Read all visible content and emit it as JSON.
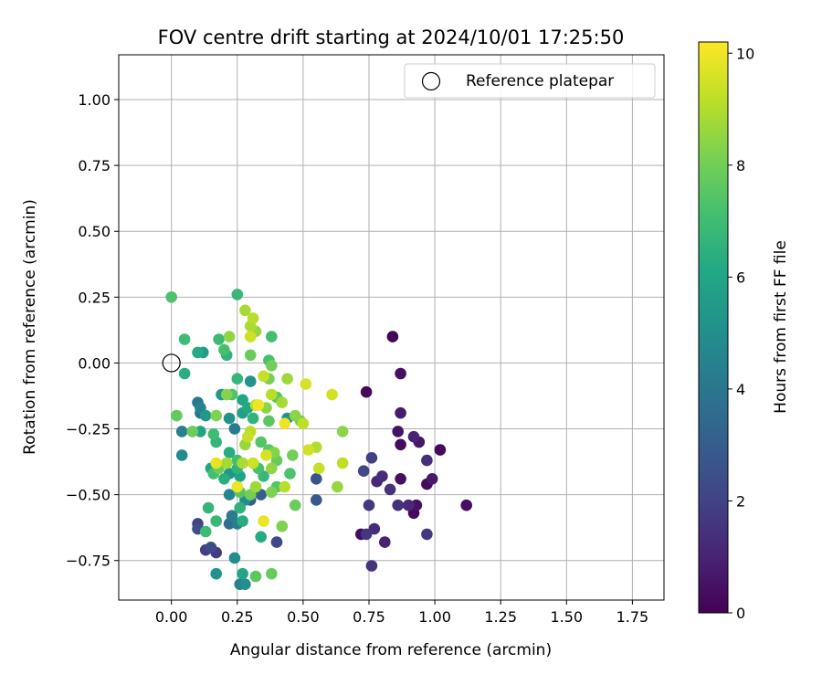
{
  "chart_data": {
    "type": "scatter",
    "title": "FOV centre drift starting at 2024/10/01 17:25:50",
    "xlabel": "Angular distance from reference (arcmin)",
    "ylabel": "Rotation from reference (arcmin)",
    "xlim": [
      -0.2,
      1.87
    ],
    "ylim": [
      -0.9,
      1.17
    ],
    "xticks": [
      "0.00",
      "0.25",
      "0.50",
      "0.75",
      "1.00",
      "1.25",
      "1.50",
      "1.75"
    ],
    "yticks": [
      "1.00",
      "0.75",
      "0.50",
      "0.25",
      "0.00",
      "−0.25",
      "−0.50",
      "−0.75"
    ],
    "xtick_values": [
      0,
      0.25,
      0.5,
      0.75,
      1.0,
      1.25,
      1.5,
      1.75
    ],
    "ytick_values": [
      1.0,
      0.75,
      0.5,
      0.25,
      0.0,
      -0.25,
      -0.5,
      -0.75
    ],
    "grid": true,
    "legend": {
      "position": "top-right",
      "label": "Reference platepar"
    },
    "reference": {
      "x": 0,
      "y": 0
    },
    "colorbar": {
      "label": "Hours from first FF file",
      "range": [
        0,
        10.2
      ],
      "ticks": [
        "0",
        "2",
        "4",
        "6",
        "8",
        "10"
      ],
      "tick_values": [
        0,
        2,
        4,
        6,
        8,
        10
      ],
      "colormap": "viridis"
    },
    "points": [
      [
        0.84,
        0.1,
        0.1
      ],
      [
        0.87,
        -0.04,
        0.4
      ],
      [
        0.74,
        -0.11,
        0.2
      ],
      [
        0.87,
        -0.19,
        0.8
      ],
      [
        0.86,
        -0.26,
        0.5
      ],
      [
        0.92,
        -0.28,
        1.0
      ],
      [
        0.94,
        -0.3,
        0.6
      ],
      [
        0.87,
        -0.31,
        0.3
      ],
      [
        0.97,
        -0.37,
        1.4
      ],
      [
        1.02,
        -0.33,
        0.2
      ],
      [
        0.76,
        -0.36,
        1.9
      ],
      [
        0.73,
        -0.41,
        2.1
      ],
      [
        0.8,
        -0.43,
        1.3
      ],
      [
        0.78,
        -0.45,
        1.1
      ],
      [
        0.87,
        -0.44,
        0.4
      ],
      [
        0.99,
        -0.44,
        0.7
      ],
      [
        0.83,
        -0.48,
        1.5
      ],
      [
        0.97,
        -0.46,
        0.3
      ],
      [
        0.75,
        -0.54,
        1.7
      ],
      [
        0.86,
        -0.54,
        1.4
      ],
      [
        0.9,
        -0.54,
        1.2
      ],
      [
        0.93,
        -0.54,
        0.5
      ],
      [
        0.92,
        -0.57,
        0.2
      ],
      [
        1.12,
        -0.54,
        0.4
      ],
      [
        0.77,
        -0.63,
        1.3
      ],
      [
        0.74,
        -0.65,
        1.6
      ],
      [
        0.72,
        -0.65,
        0.3
      ],
      [
        0.81,
        -0.68,
        1.0
      ],
      [
        0.76,
        -0.77,
        1.5
      ],
      [
        0.97,
        -0.65,
        1.7
      ],
      [
        0.55,
        -0.44,
        2.6
      ],
      [
        0.55,
        -0.52,
        2.8
      ],
      [
        0.4,
        -0.68,
        2.2
      ],
      [
        0.1,
        -0.61,
        2.0
      ],
      [
        0.1,
        -0.63,
        2.4
      ],
      [
        0.13,
        -0.71,
        1.9
      ],
      [
        0.15,
        -0.7,
        2.3
      ],
      [
        0.17,
        -0.72,
        1.8
      ],
      [
        0.3,
        -0.52,
        2.9
      ],
      [
        0.34,
        -0.5,
        3.1
      ],
      [
        0.0,
        0.25,
        7.3
      ],
      [
        0.25,
        0.26,
        6.8
      ],
      [
        0.05,
        0.09,
        7.0
      ],
      [
        0.05,
        -0.04,
        6.4
      ],
      [
        0.1,
        0.04,
        6.2
      ],
      [
        0.12,
        0.04,
        5.6
      ],
      [
        0.18,
        0.09,
        6.9
      ],
      [
        0.2,
        0.05,
        7.2
      ],
      [
        0.21,
        0.03,
        6.5
      ],
      [
        0.22,
        0.1,
        8.5
      ],
      [
        0.28,
        0.2,
        8.8
      ],
      [
        0.31,
        0.17,
        9.1
      ],
      [
        0.3,
        0.14,
        8.9
      ],
      [
        0.32,
        0.12,
        8.6
      ],
      [
        0.3,
        0.1,
        9.4
      ],
      [
        0.38,
        0.1,
        7.1
      ],
      [
        0.3,
        0.03,
        7.8
      ],
      [
        0.37,
        0.01,
        7.2
      ],
      [
        0.38,
        -0.01,
        8.0
      ],
      [
        0.25,
        -0.06,
        6.7
      ],
      [
        0.3,
        -0.07,
        5.2
      ],
      [
        0.35,
        -0.05,
        9.3
      ],
      [
        0.37,
        -0.06,
        8.1
      ],
      [
        0.44,
        -0.06,
        8.7
      ],
      [
        0.51,
        -0.08,
        9.6
      ],
      [
        0.19,
        -0.12,
        5.3
      ],
      [
        0.21,
        -0.12,
        8.3
      ],
      [
        0.23,
        -0.12,
        7.3
      ],
      [
        0.27,
        -0.14,
        6.0
      ],
      [
        0.32,
        -0.16,
        9.2
      ],
      [
        0.36,
        -0.17,
        8.4
      ],
      [
        0.33,
        -0.16,
        10.0
      ],
      [
        0.38,
        -0.12,
        9.1
      ],
      [
        0.4,
        -0.13,
        7.5
      ],
      [
        0.42,
        -0.15,
        8.8
      ],
      [
        0.1,
        -0.15,
        4.1
      ],
      [
        0.11,
        -0.17,
        4.5
      ],
      [
        0.11,
        -0.19,
        3.8
      ],
      [
        0.13,
        -0.2,
        5.4
      ],
      [
        0.17,
        -0.2,
        8.2
      ],
      [
        0.22,
        -0.21,
        5.1
      ],
      [
        0.24,
        -0.25,
        4.2
      ],
      [
        0.27,
        -0.19,
        5.7
      ],
      [
        0.29,
        -0.17,
        6.1
      ],
      [
        0.31,
        -0.21,
        6.6
      ],
      [
        0.37,
        -0.22,
        7.6
      ],
      [
        0.44,
        -0.21,
        5.2
      ],
      [
        0.47,
        -0.2,
        8.4
      ],
      [
        0.49,
        -0.22,
        8.0
      ],
      [
        0.5,
        -0.23,
        9.2
      ],
      [
        0.43,
        -0.23,
        10.0
      ],
      [
        0.02,
        -0.2,
        7.7
      ],
      [
        0.04,
        -0.26,
        4.4
      ],
      [
        0.08,
        -0.26,
        7.9
      ],
      [
        0.11,
        -0.26,
        6.0
      ],
      [
        0.16,
        -0.27,
        7.0
      ],
      [
        0.17,
        -0.3,
        6.7
      ],
      [
        0.22,
        -0.34,
        6.3
      ],
      [
        0.25,
        -0.37,
        7.1
      ],
      [
        0.28,
        -0.31,
        8.6
      ],
      [
        0.29,
        -0.28,
        9.3
      ],
      [
        0.3,
        -0.26,
        9.1
      ],
      [
        0.34,
        -0.3,
        7.4
      ],
      [
        0.37,
        -0.33,
        7.6
      ],
      [
        0.39,
        -0.34,
        8.3
      ],
      [
        0.36,
        -0.35,
        9.6
      ],
      [
        0.4,
        -0.37,
        7.8
      ],
      [
        0.46,
        -0.35,
        8.0
      ],
      [
        0.52,
        -0.33,
        9.5
      ],
      [
        0.55,
        -0.32,
        9.0
      ],
      [
        0.04,
        -0.35,
        4.8
      ],
      [
        0.15,
        -0.4,
        6.0
      ],
      [
        0.16,
        -0.42,
        7.1
      ],
      [
        0.18,
        -0.4,
        7.9
      ],
      [
        0.2,
        -0.44,
        6.4
      ],
      [
        0.22,
        -0.42,
        5.3
      ],
      [
        0.25,
        -0.4,
        6.6
      ],
      [
        0.26,
        -0.43,
        5.9
      ],
      [
        0.27,
        -0.38,
        8.9
      ],
      [
        0.31,
        -0.38,
        9.4
      ],
      [
        0.33,
        -0.4,
        7.2
      ],
      [
        0.35,
        -0.43,
        6.8
      ],
      [
        0.38,
        -0.4,
        8.5
      ],
      [
        0.45,
        -0.42,
        7.3
      ],
      [
        0.56,
        -0.4,
        9.3
      ],
      [
        0.17,
        -0.38,
        9.8
      ],
      [
        0.21,
        -0.38,
        8.8
      ],
      [
        0.25,
        -0.47,
        9.9
      ],
      [
        0.26,
        -0.49,
        7.5
      ],
      [
        0.3,
        -0.5,
        8.0
      ],
      [
        0.32,
        -0.47,
        8.7
      ],
      [
        0.38,
        -0.49,
        8.2
      ],
      [
        0.4,
        -0.47,
        7.4
      ],
      [
        0.43,
        -0.47,
        9.1
      ],
      [
        0.61,
        -0.12,
        9.5
      ],
      [
        0.63,
        -0.47,
        8.6
      ],
      [
        0.65,
        -0.26,
        8.4
      ],
      [
        0.65,
        -0.38,
        9.2
      ],
      [
        0.14,
        -0.55,
        6.7
      ],
      [
        0.22,
        -0.5,
        4.6
      ],
      [
        0.26,
        -0.55,
        6.5
      ],
      [
        0.28,
        -0.52,
        5.0
      ],
      [
        0.23,
        -0.58,
        4.2
      ],
      [
        0.22,
        -0.61,
        3.6
      ],
      [
        0.25,
        -0.61,
        4.3
      ],
      [
        0.27,
        -0.6,
        6.3
      ],
      [
        0.13,
        -0.64,
        7.0
      ],
      [
        0.17,
        -0.6,
        6.8
      ],
      [
        0.35,
        -0.6,
        9.9
      ],
      [
        0.47,
        -0.54,
        7.9
      ],
      [
        0.34,
        -0.66,
        6.2
      ],
      [
        0.42,
        -0.62,
        8.2
      ],
      [
        0.24,
        -0.74,
        4.9
      ],
      [
        0.17,
        -0.8,
        5.2
      ],
      [
        0.26,
        -0.84,
        4.4
      ],
      [
        0.28,
        -0.84,
        5.0
      ],
      [
        0.27,
        -0.8,
        6.0
      ],
      [
        0.32,
        -0.81,
        7.6
      ],
      [
        0.38,
        -0.8,
        7.8
      ]
    ]
  }
}
